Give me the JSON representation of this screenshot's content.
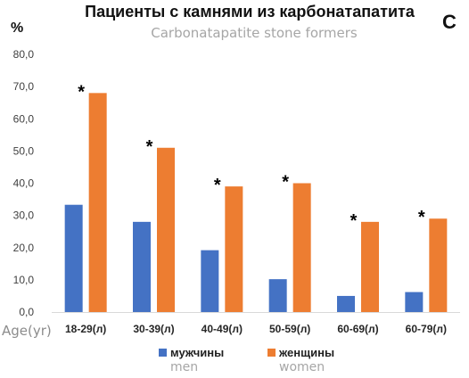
{
  "chart_data": {
    "type": "bar",
    "panel_letter": "C",
    "title": "Пациенты с камнями из карбонатапатита",
    "subtitle": "Carbonatapatite stone formers",
    "ylabel": "%",
    "xlabel": "Age(yr)",
    "ylim": [
      0,
      80
    ],
    "yticks": [
      "0,0",
      "10,0",
      "20,0",
      "30,0",
      "40,0",
      "50,0",
      "60,0",
      "70,0",
      "80,0"
    ],
    "grid": false,
    "legend_position": "bottom-center",
    "categories": [
      "18-29(л)",
      "30-39(л)",
      "40-49(л)",
      "50-59(л)",
      "60-69(л)",
      "60-79(л)"
    ],
    "series": [
      {
        "name": "мужчины",
        "name_en": "men",
        "color": "#4472c4",
        "values": [
          33.3,
          28.0,
          19.2,
          10.2,
          5.0,
          6.2
        ]
      },
      {
        "name": "женщины",
        "name_en": "women",
        "color": "#ed7d31",
        "values": [
          68.0,
          51.0,
          39.0,
          40.0,
          28.0,
          29.0
        ]
      }
    ],
    "significance_marker": "*",
    "significant_categories": [
      0,
      1,
      2,
      3,
      4,
      5
    ]
  }
}
